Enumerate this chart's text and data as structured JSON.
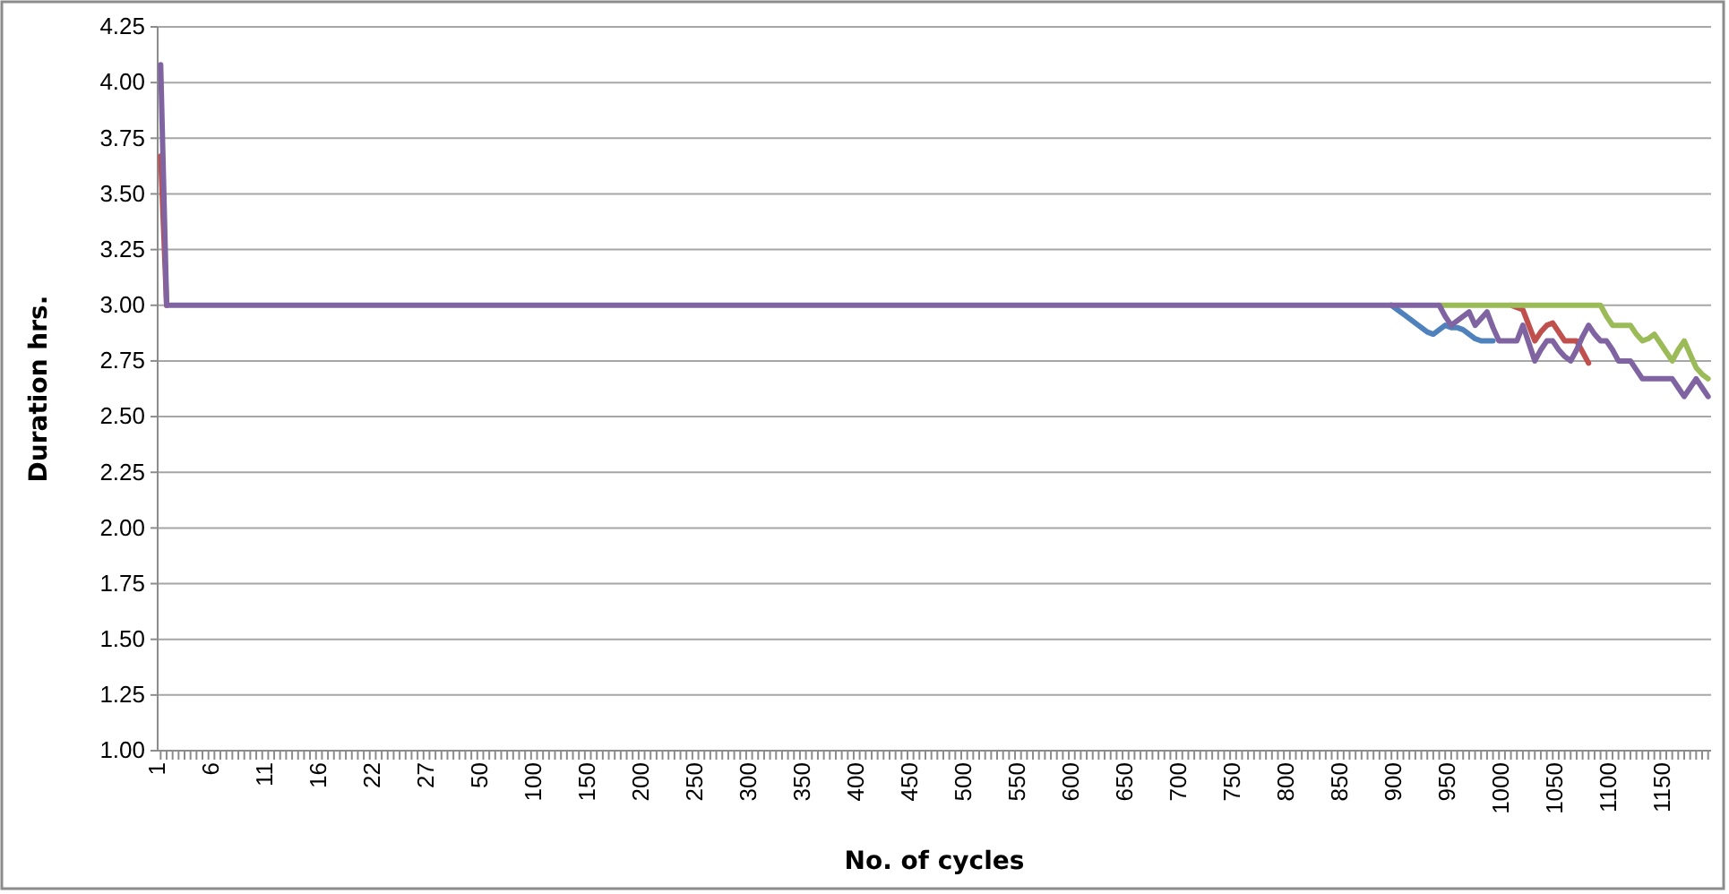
{
  "chart_data": {
    "type": "line",
    "xlabel": "No. of cycles",
    "ylabel": "Duration hrs.",
    "categories": [
      "1",
      null,
      null,
      null,
      null,
      null,
      null,
      null,
      null,
      "6",
      null,
      null,
      null,
      null,
      null,
      null,
      null,
      null,
      "11",
      null,
      null,
      null,
      null,
      null,
      null,
      null,
      null,
      "16",
      null,
      null,
      null,
      null,
      null,
      null,
      null,
      null,
      "22",
      null,
      null,
      null,
      null,
      null,
      null,
      null,
      null,
      "27",
      null,
      null,
      null,
      null,
      null,
      null,
      null,
      null,
      "50",
      null,
      null,
      null,
      null,
      null,
      null,
      null,
      null,
      "100",
      null,
      null,
      null,
      null,
      null,
      null,
      null,
      null,
      "150",
      null,
      null,
      null,
      null,
      null,
      null,
      null,
      null,
      "200",
      null,
      null,
      null,
      null,
      null,
      null,
      null,
      null,
      "250",
      null,
      null,
      null,
      null,
      null,
      null,
      null,
      null,
      "300",
      null,
      null,
      null,
      null,
      null,
      null,
      null,
      null,
      "350",
      null,
      null,
      null,
      null,
      null,
      null,
      null,
      null,
      "400",
      null,
      null,
      null,
      null,
      null,
      null,
      null,
      null,
      "450",
      null,
      null,
      null,
      null,
      null,
      null,
      null,
      null,
      "500",
      null,
      null,
      null,
      null,
      null,
      null,
      null,
      null,
      "550",
      null,
      null,
      null,
      null,
      null,
      null,
      null,
      null,
      "600",
      null,
      null,
      null,
      null,
      null,
      null,
      null,
      null,
      "650",
      null,
      null,
      null,
      null,
      null,
      null,
      null,
      null,
      "700",
      null,
      null,
      null,
      null,
      null,
      null,
      null,
      null,
      "750",
      null,
      null,
      null,
      null,
      null,
      null,
      null,
      null,
      "800",
      null,
      null,
      null,
      null,
      null,
      null,
      null,
      null,
      "850",
      null,
      null,
      null,
      null,
      null,
      null,
      null,
      null,
      "900",
      null,
      null,
      null,
      null,
      null,
      null,
      null,
      null,
      "950",
      null,
      null,
      null,
      null,
      null,
      null,
      null,
      null,
      "1000",
      null,
      null,
      null,
      null,
      null,
      null,
      null,
      null,
      "1050",
      null,
      null,
      null,
      null,
      null,
      null,
      null,
      null,
      "1100",
      null,
      null,
      null,
      null,
      null,
      null,
      null,
      null,
      "1150",
      null,
      null,
      null,
      null,
      null,
      null,
      null
    ],
    "series": [
      {
        "color": "#4f81bd",
        "values": [
          null,
          null,
          null,
          null,
          null,
          null,
          null,
          null,
          null,
          null,
          null,
          null,
          null,
          null,
          null,
          null,
          null,
          null,
          null,
          null,
          null,
          null,
          null,
          null,
          null,
          null,
          null,
          null,
          null,
          null,
          null,
          null,
          null,
          null,
          null,
          null,
          null,
          null,
          null,
          null,
          null,
          null,
          null,
          null,
          null,
          null,
          null,
          null,
          null,
          null,
          null,
          null,
          null,
          null,
          null,
          null,
          null,
          null,
          null,
          null,
          null,
          null,
          null,
          null,
          null,
          null,
          null,
          null,
          null,
          null,
          null,
          null,
          null,
          null,
          null,
          null,
          null,
          null,
          null,
          null,
          null,
          null,
          null,
          null,
          null,
          null,
          null,
          null,
          null,
          null,
          null,
          null,
          null,
          null,
          null,
          null,
          null,
          null,
          null,
          null,
          null,
          null,
          null,
          null,
          null,
          null,
          null,
          null,
          null,
          null,
          null,
          null,
          null,
          null,
          null,
          null,
          null,
          null,
          null,
          null,
          null,
          null,
          null,
          null,
          null,
          null,
          null,
          null,
          null,
          null,
          null,
          null,
          null,
          null,
          null,
          null,
          null,
          null,
          null,
          null,
          null,
          null,
          null,
          null,
          null,
          null,
          null,
          null,
          null,
          null,
          null,
          null,
          null,
          null,
          null,
          null,
          null,
          null,
          null,
          null,
          null,
          null,
          null,
          null,
          null,
          null,
          null,
          null,
          null,
          null,
          null,
          null,
          null,
          null,
          null,
          null,
          null,
          null,
          null,
          null,
          null,
          null,
          null,
          null,
          null,
          null,
          null,
          null,
          null,
          null,
          null,
          null,
          null,
          null,
          null,
          null,
          null,
          null,
          null,
          null,
          null,
          null,
          null,
          null,
          null,
          null,
          3,
          2.98,
          2.96,
          2.94,
          2.92,
          2.9,
          2.88,
          2.87,
          2.89,
          2.91,
          2.9,
          2.9,
          2.89,
          2.87,
          2.85,
          2.84,
          2.84,
          2.84,
          null,
          null,
          null,
          null,
          null,
          null,
          null,
          null,
          null,
          null,
          null,
          null,
          null,
          null,
          null,
          null,
          null,
          null,
          null,
          null,
          null,
          null,
          null,
          null,
          null,
          null,
          null,
          null,
          null,
          null,
          null,
          null,
          null,
          null,
          null,
          null
        ]
      },
      {
        "color": "#c0504d",
        "values": [
          3.67,
          3,
          null,
          null,
          null,
          null,
          null,
          null,
          null,
          null,
          null,
          null,
          null,
          null,
          null,
          null,
          null,
          null,
          null,
          null,
          null,
          null,
          null,
          null,
          null,
          null,
          null,
          null,
          null,
          null,
          null,
          null,
          null,
          null,
          null,
          null,
          null,
          null,
          null,
          null,
          null,
          null,
          null,
          null,
          null,
          null,
          null,
          null,
          null,
          null,
          null,
          null,
          null,
          null,
          null,
          null,
          null,
          null,
          null,
          null,
          null,
          null,
          null,
          null,
          null,
          null,
          null,
          null,
          null,
          null,
          null,
          null,
          null,
          null,
          null,
          null,
          null,
          null,
          null,
          null,
          null,
          null,
          null,
          null,
          null,
          null,
          null,
          null,
          null,
          null,
          null,
          null,
          null,
          null,
          null,
          null,
          null,
          null,
          null,
          null,
          null,
          null,
          null,
          null,
          null,
          null,
          null,
          null,
          null,
          null,
          null,
          null,
          null,
          null,
          null,
          null,
          null,
          null,
          null,
          null,
          null,
          null,
          null,
          null,
          null,
          null,
          null,
          null,
          null,
          null,
          null,
          null,
          null,
          null,
          null,
          null,
          null,
          null,
          null,
          null,
          null,
          null,
          null,
          null,
          null,
          null,
          null,
          null,
          null,
          null,
          null,
          null,
          null,
          null,
          null,
          null,
          null,
          null,
          null,
          null,
          null,
          null,
          null,
          null,
          null,
          null,
          null,
          null,
          null,
          null,
          null,
          null,
          null,
          null,
          null,
          null,
          null,
          null,
          null,
          null,
          null,
          null,
          null,
          null,
          null,
          null,
          null,
          null,
          null,
          null,
          null,
          null,
          null,
          null,
          null,
          null,
          null,
          null,
          null,
          null,
          null,
          null,
          null,
          null,
          null,
          null,
          null,
          null,
          null,
          null,
          null,
          null,
          null,
          null,
          null,
          null,
          null,
          null,
          null,
          null,
          null,
          null,
          null,
          null,
          null,
          null,
          3,
          2.99,
          2.98,
          2.91,
          2.84,
          2.88,
          2.91,
          2.92,
          2.88,
          2.84,
          2.84,
          2.84,
          2.79,
          2.74,
          null,
          null,
          null,
          null,
          null,
          null,
          null,
          null,
          null,
          null,
          null,
          null,
          null,
          null,
          null,
          null,
          null,
          null,
          null,
          null
        ]
      },
      {
        "color": "#9bbb59",
        "values": [
          null,
          null,
          null,
          null,
          null,
          null,
          null,
          null,
          null,
          null,
          null,
          null,
          null,
          null,
          null,
          null,
          null,
          null,
          null,
          null,
          null,
          null,
          null,
          null,
          null,
          null,
          null,
          null,
          null,
          null,
          null,
          null,
          null,
          null,
          null,
          null,
          null,
          null,
          null,
          null,
          null,
          null,
          null,
          null,
          null,
          null,
          null,
          null,
          null,
          null,
          null,
          null,
          null,
          null,
          null,
          null,
          null,
          null,
          null,
          null,
          null,
          null,
          null,
          null,
          null,
          null,
          null,
          null,
          null,
          null,
          null,
          null,
          null,
          null,
          null,
          null,
          null,
          null,
          null,
          null,
          null,
          null,
          null,
          null,
          null,
          null,
          null,
          null,
          null,
          null,
          null,
          null,
          null,
          null,
          null,
          null,
          null,
          null,
          null,
          null,
          null,
          null,
          null,
          null,
          null,
          null,
          null,
          null,
          null,
          null,
          null,
          null,
          null,
          null,
          null,
          null,
          null,
          null,
          null,
          null,
          null,
          null,
          null,
          null,
          null,
          null,
          null,
          null,
          null,
          null,
          null,
          null,
          null,
          null,
          null,
          null,
          null,
          null,
          null,
          null,
          null,
          null,
          null,
          null,
          null,
          null,
          null,
          null,
          null,
          null,
          null,
          null,
          null,
          null,
          null,
          null,
          null,
          null,
          null,
          null,
          null,
          null,
          null,
          null,
          null,
          null,
          null,
          null,
          null,
          null,
          null,
          null,
          null,
          null,
          null,
          null,
          null,
          null,
          null,
          null,
          null,
          null,
          null,
          null,
          null,
          null,
          null,
          null,
          null,
          null,
          null,
          null,
          null,
          null,
          null,
          null,
          null,
          null,
          null,
          null,
          null,
          null,
          null,
          null,
          null,
          null,
          null,
          null,
          null,
          null,
          null,
          null,
          null,
          null,
          3,
          3,
          3,
          3,
          3,
          3,
          3,
          3,
          3,
          3,
          3,
          3,
          3,
          3,
          3,
          3,
          3,
          3,
          3,
          3,
          3,
          3,
          3,
          3,
          3,
          3,
          3,
          3,
          2.95,
          2.91,
          2.91,
          2.91,
          2.91,
          2.87,
          2.84,
          2.85,
          2.87,
          2.83,
          2.79,
          2.75,
          2.8,
          2.84,
          2.78,
          2.72,
          2.69,
          2.67
        ]
      },
      {
        "color": "#8064a2",
        "values": [
          4.08,
          3,
          3,
          3,
          3,
          3,
          3,
          3,
          3,
          3,
          3,
          3,
          3,
          3,
          3,
          3,
          3,
          3,
          3,
          3,
          3,
          3,
          3,
          3,
          3,
          3,
          3,
          3,
          3,
          3,
          3,
          3,
          3,
          3,
          3,
          3,
          3,
          3,
          3,
          3,
          3,
          3,
          3,
          3,
          3,
          3,
          3,
          3,
          3,
          3,
          3,
          3,
          3,
          3,
          3,
          3,
          3,
          3,
          3,
          3,
          3,
          3,
          3,
          3,
          3,
          3,
          3,
          3,
          3,
          3,
          3,
          3,
          3,
          3,
          3,
          3,
          3,
          3,
          3,
          3,
          3,
          3,
          3,
          3,
          3,
          3,
          3,
          3,
          3,
          3,
          3,
          3,
          3,
          3,
          3,
          3,
          3,
          3,
          3,
          3,
          3,
          3,
          3,
          3,
          3,
          3,
          3,
          3,
          3,
          3,
          3,
          3,
          3,
          3,
          3,
          3,
          3,
          3,
          3,
          3,
          3,
          3,
          3,
          3,
          3,
          3,
          3,
          3,
          3,
          3,
          3,
          3,
          3,
          3,
          3,
          3,
          3,
          3,
          3,
          3,
          3,
          3,
          3,
          3,
          3,
          3,
          3,
          3,
          3,
          3,
          3,
          3,
          3,
          3,
          3,
          3,
          3,
          3,
          3,
          3,
          3,
          3,
          3,
          3,
          3,
          3,
          3,
          3,
          3,
          3,
          3,
          3,
          3,
          3,
          3,
          3,
          3,
          3,
          3,
          3,
          3,
          3,
          3,
          3,
          3,
          3,
          3,
          3,
          3,
          3,
          3,
          3,
          3,
          3,
          3,
          3,
          3,
          3,
          3,
          3,
          3,
          3,
          3,
          3,
          3,
          3,
          3,
          3,
          3,
          3,
          3,
          3,
          3,
          3,
          3,
          2.95,
          2.91,
          2.93,
          2.95,
          2.97,
          2.91,
          2.94,
          2.97,
          2.9,
          2.84,
          2.84,
          2.84,
          2.84,
          2.91,
          2.83,
          2.75,
          2.8,
          2.84,
          2.84,
          2.8,
          2.77,
          2.75,
          2.8,
          2.86,
          2.91,
          2.87,
          2.84,
          2.84,
          2.8,
          2.75,
          2.75,
          2.75,
          2.71,
          2.67,
          2.67,
          2.67,
          2.67,
          2.67,
          2.67,
          2.63,
          2.59,
          2.63,
          2.67,
          2.63,
          2.59
        ]
      }
    ],
    "ylim": [
      1,
      4.25
    ],
    "yticks": [
      {
        "value": 1,
        "label": "1.00"
      },
      {
        "value": 1.25,
        "label": "1.25"
      },
      {
        "value": 1.5,
        "label": "1.50"
      },
      {
        "value": 1.75,
        "label": "1.75"
      },
      {
        "value": 2,
        "label": "2.00"
      },
      {
        "value": 2.25,
        "label": "2.25"
      },
      {
        "value": 2.5,
        "label": "2.50"
      },
      {
        "value": 2.75,
        "label": "2.75"
      },
      {
        "value": 3,
        "label": "3.00"
      },
      {
        "value": 3.25,
        "label": "3.25"
      },
      {
        "value": 3.5,
        "label": "3.50"
      },
      {
        "value": 3.75,
        "label": "3.75"
      },
      {
        "value": 4,
        "label": "4.00"
      },
      {
        "value": 4.25,
        "label": "4.25"
      }
    ],
    "grid": "y",
    "legend": false,
    "marker": "none",
    "line_style": "solid"
  }
}
